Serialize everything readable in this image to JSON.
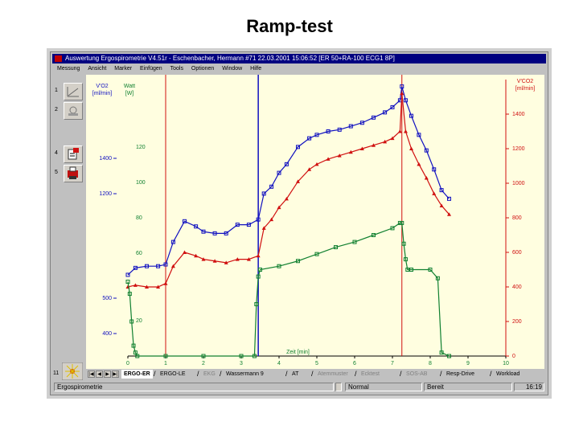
{
  "slide": {
    "title": "Ramp-test"
  },
  "window": {
    "title": "Auswertung Ergospirometrie V4.51r - Eschenbacher, Hermann #71 22.03.2001 15:06:52 [ER 50+RA-100 ECG1 8P]",
    "menu": [
      "Messung",
      "Ansicht",
      "Marker",
      "Einfügen",
      "Tools",
      "Optionen",
      "Window",
      "Hilfe"
    ],
    "tool_numbers": [
      "1",
      "2",
      "4",
      "5",
      "11"
    ]
  },
  "tabs": {
    "items": [
      {
        "label": "ERGO-ER",
        "active": true
      },
      {
        "label": "ERGO-LE",
        "active": false
      },
      {
        "label": "EKG",
        "active": false,
        "gray": true
      },
      {
        "label": "Wassermann 9",
        "active": false
      },
      {
        "label": "AT",
        "active": false
      },
      {
        "label": "Atemmuster",
        "active": false,
        "gray": true
      },
      {
        "label": "Ecktest",
        "active": false,
        "gray": true
      },
      {
        "label": "SOS-AB",
        "active": false,
        "gray": true
      },
      {
        "label": "Resp-Drive",
        "active": false
      },
      {
        "label": "Workload",
        "active": false
      }
    ]
  },
  "status": {
    "left": "Ergospirometrie",
    "mode": "Normal",
    "state": "Bereit",
    "time": "16:19"
  },
  "colors": {
    "vo2": "#1010c0",
    "vco2": "#d01010",
    "watt": "#108030",
    "background": "#fffee0"
  },
  "chart_data": {
    "type": "line",
    "xlabel": "Zeit [min]",
    "xlim": [
      0,
      10
    ],
    "x_ticks": [
      0,
      1,
      2,
      3,
      4,
      5,
      6,
      7,
      8,
      9,
      10
    ],
    "left_axis_1": {
      "label": "V'O2\n[ml/min]",
      "ticks": [
        "400",
        "500",
        "",
        "1200",
        "1400"
      ],
      "tick_values": [
        400,
        500,
        0,
        1200,
        1400
      ]
    },
    "left_axis_1_label_lines": [
      "V'O2",
      "[ml/min]"
    ],
    "left_axis_2": {
      "label_lines": [
        "Watt",
        "[W]"
      ],
      "ticks": [
        "20",
        "60",
        "80",
        "100",
        "120"
      ],
      "tick_values": [
        20,
        60,
        80,
        100,
        120
      ]
    },
    "right_axis": {
      "label_lines": [
        "V'CO2",
        "[ml/min]"
      ],
      "ticks": [
        "0",
        "200",
        "400",
        "600",
        "800",
        "1000",
        "1200",
        "1400"
      ],
      "tick_values": [
        0,
        200,
        400,
        600,
        800,
        1000,
        1200,
        1400
      ]
    },
    "ylim": [
      0,
      1600
    ],
    "markers": [
      {
        "x": 1.0,
        "color": "#d01010"
      },
      {
        "x": 3.45,
        "color": "#1010c0"
      },
      {
        "x": 7.25,
        "color": "#d01010"
      }
    ],
    "series": [
      {
        "key": "vo2",
        "color": "#1010c0",
        "marker": "square",
        "x": [
          0.0,
          0.2,
          0.5,
          0.8,
          1.0,
          1.2,
          1.5,
          1.8,
          2.0,
          2.3,
          2.6,
          2.9,
          3.2,
          3.45,
          3.6,
          3.8,
          4.0,
          4.2,
          4.5,
          4.8,
          5.0,
          5.3,
          5.6,
          5.9,
          6.2,
          6.5,
          6.8,
          7.0,
          7.2,
          7.25,
          7.35,
          7.5,
          7.7,
          7.9,
          8.1,
          8.3,
          8.5
        ],
        "y": [
          470,
          510,
          520,
          520,
          530,
          660,
          780,
          750,
          720,
          710,
          710,
          760,
          760,
          790,
          940,
          980,
          1060,
          1110,
          1210,
          1260,
          1280,
          1300,
          1310,
          1330,
          1350,
          1380,
          1410,
          1440,
          1480,
          1560,
          1480,
          1390,
          1280,
          1190,
          1080,
          960,
          910
        ]
      },
      {
        "key": "vco2",
        "color": "#d01010",
        "marker": "triangle",
        "x": [
          0.0,
          0.2,
          0.5,
          0.8,
          1.0,
          1.2,
          1.5,
          1.8,
          2.0,
          2.3,
          2.6,
          2.9,
          3.2,
          3.45,
          3.6,
          3.8,
          4.0,
          4.2,
          4.5,
          4.8,
          5.0,
          5.3,
          5.6,
          5.9,
          6.2,
          6.5,
          6.8,
          7.0,
          7.2,
          7.25,
          7.35,
          7.5,
          7.7,
          7.9,
          8.1,
          8.3,
          8.5
        ],
        "y": [
          400,
          410,
          400,
          400,
          420,
          520,
          600,
          580,
          560,
          550,
          540,
          560,
          560,
          580,
          740,
          790,
          860,
          910,
          1010,
          1080,
          1110,
          1140,
          1160,
          1180,
          1200,
          1220,
          1240,
          1260,
          1300,
          1520,
          1300,
          1200,
          1110,
          1030,
          940,
          870,
          820
        ]
      },
      {
        "key": "watt",
        "color": "#108030",
        "marker": "square",
        "x": [
          0.0,
          0.05,
          0.1,
          0.15,
          0.2,
          0.25,
          1.0,
          2.0,
          3.0,
          3.35,
          3.4,
          3.45,
          3.5,
          4.0,
          4.5,
          5.0,
          5.5,
          6.0,
          6.5,
          7.0,
          7.2,
          7.25,
          7.3,
          7.35,
          7.4,
          7.5,
          8.0,
          8.2,
          8.3,
          8.5
        ],
        "y": [
          430,
          360,
          200,
          60,
          20,
          0,
          0,
          0,
          0,
          0,
          300,
          460,
          500,
          520,
          550,
          590,
          630,
          660,
          700,
          740,
          770,
          770,
          650,
          560,
          500,
          500,
          500,
          450,
          20,
          0
        ]
      }
    ]
  }
}
